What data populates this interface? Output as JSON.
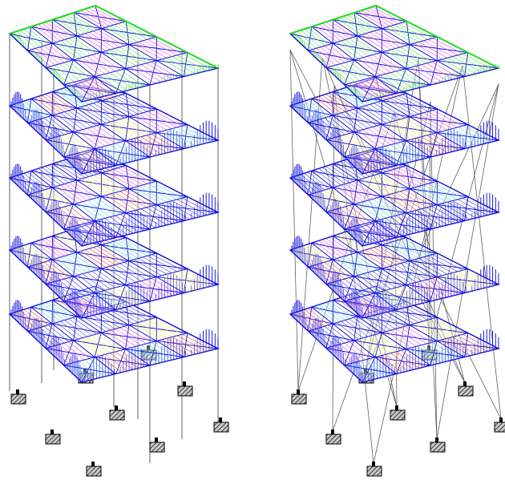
{
  "figure": {
    "panels": [
      {
        "id": "left",
        "name": "frame-model-vertical-columns",
        "column_style": "vertical",
        "floor_count": 5
      },
      {
        "id": "right",
        "name": "frame-model-inclined-columns",
        "column_style": "inclined",
        "floor_count": 5
      }
    ],
    "colors": {
      "slab_edge": "#1010d8",
      "slab_hatch_dense": "#0000e0",
      "top_accent": "#22dd22",
      "diag_magenta": "#e020e0",
      "diag_cyan": "#20c8e8",
      "diag_yellow": "#e8d820",
      "diag_red": "#e02020",
      "column": "#606060",
      "support_fill": "#c8c8c8",
      "support_hatch": "#000000"
    },
    "icons": [
      "fixed-support-icon"
    ]
  }
}
